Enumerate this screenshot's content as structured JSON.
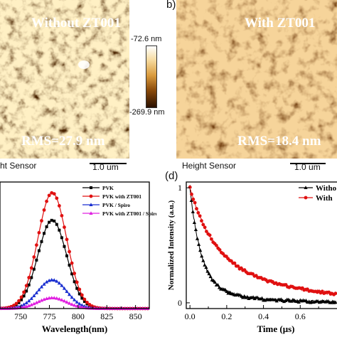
{
  "panel_a": {
    "title": "Without  ZT001",
    "rms": "RMS=27.9 nm",
    "sensor": "ht Sensor"
  },
  "panel_b": {
    "letter": "b)",
    "title": "With  ZT001",
    "rms": "RMS=18.4 nm",
    "sensor": "Height Sensor"
  },
  "scalebar_label": "1.0 um",
  "colorbar": {
    "max_label": "-72.6 nm",
    "min_label": "-269.9 nm",
    "colors": [
      "#ffffff",
      "#f7dca2",
      "#d99a3c",
      "#8a4a0a",
      "#2a1000"
    ]
  },
  "panel_d_letter": "(d)",
  "chart_data": [
    {
      "type": "line",
      "xlabel": "Wavelength(nm)",
      "ylabel": "",
      "xlim": [
        732,
        862
      ],
      "ylim": [
        0,
        1.06
      ],
      "xticks": [
        "750",
        "775",
        "800",
        "825",
        "850"
      ],
      "xtick_values": [
        750,
        775,
        800,
        825,
        850
      ],
      "legend_position": "top-right",
      "series": [
        {
          "name": "PVK",
          "color": "#000000",
          "marker": "square",
          "x": [
            732,
            740,
            748,
            756,
            764,
            770,
            775,
            780,
            786,
            792,
            800,
            808,
            816,
            824,
            832,
            840,
            848,
            856,
            862
          ],
          "y": [
            0.0,
            0.03,
            0.1,
            0.26,
            0.5,
            0.68,
            0.74,
            0.72,
            0.62,
            0.46,
            0.26,
            0.12,
            0.05,
            0.02,
            0.01,
            0.0,
            0.0,
            0.0,
            0.0
          ]
        },
        {
          "name": "PVK with ZT001",
          "color": "#e01010",
          "marker": "circle",
          "x": [
            732,
            740,
            748,
            756,
            764,
            770,
            775,
            780,
            786,
            792,
            800,
            808,
            816,
            824,
            832,
            840,
            848,
            856,
            862
          ],
          "y": [
            0.0,
            0.04,
            0.14,
            0.34,
            0.65,
            0.88,
            0.97,
            0.94,
            0.81,
            0.6,
            0.34,
            0.16,
            0.06,
            0.02,
            0.01,
            0.0,
            0.0,
            0.0,
            0.0
          ]
        },
        {
          "name": "PVK / Spiro",
          "color": "#1a2fd0",
          "marker": "triangle",
          "x": [
            732,
            740,
            748,
            756,
            764,
            770,
            775,
            780,
            786,
            792,
            800,
            808,
            816,
            824,
            832,
            840,
            848,
            856,
            862
          ],
          "y": [
            0.0,
            0.01,
            0.03,
            0.08,
            0.15,
            0.21,
            0.24,
            0.23,
            0.2,
            0.15,
            0.08,
            0.04,
            0.01,
            0.0,
            0.0,
            0.0,
            0.0,
            0.0,
            0.0
          ]
        },
        {
          "name": "PVK with ZT001 / Spiro",
          "color": "#e020e0",
          "marker": "triangle",
          "x": [
            732,
            740,
            748,
            756,
            764,
            770,
            775,
            780,
            786,
            792,
            800,
            808,
            816,
            824,
            832,
            840,
            848,
            856,
            862
          ],
          "y": [
            0.0,
            0.0,
            0.01,
            0.03,
            0.06,
            0.08,
            0.09,
            0.09,
            0.08,
            0.06,
            0.03,
            0.01,
            0.0,
            0.0,
            0.0,
            0.0,
            0.0,
            0.0,
            0.0
          ]
        }
      ]
    },
    {
      "type": "line",
      "xlabel": "Time (μs)",
      "ylabel": "Normalized Intensity (a.u.)",
      "xlim": [
        -0.02,
        0.8
      ],
      "ylim": [
        -0.05,
        1.05
      ],
      "xticks": [
        "0.0",
        "0.2",
        "0.4",
        "0.6"
      ],
      "xtick_values": [
        0.0,
        0.2,
        0.4,
        0.6
      ],
      "yticks": [
        "0",
        "1"
      ],
      "ytick_values": [
        0,
        1
      ],
      "legend_position": "top-right",
      "series": [
        {
          "name": "Witho",
          "color": "#000000",
          "marker": "triangle",
          "tau": 0.06,
          "tau2": 0.25,
          "a1": 0.85
        },
        {
          "name": "With",
          "color": "#e01010",
          "marker": "circle",
          "tau": 0.12,
          "tau2": 0.45,
          "a1": 0.55
        }
      ]
    }
  ]
}
